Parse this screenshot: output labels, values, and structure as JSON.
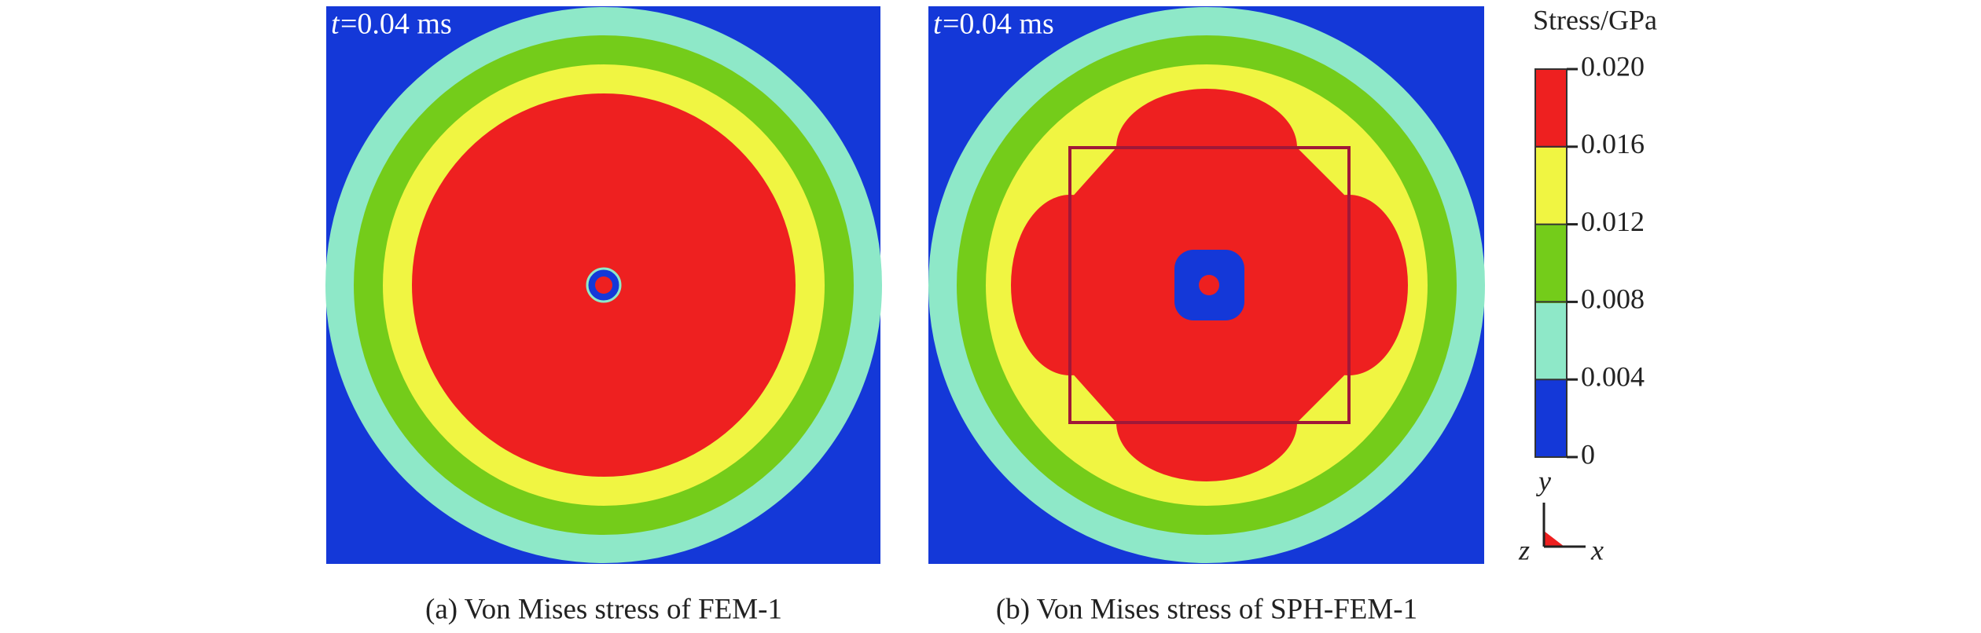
{
  "panels": [
    {
      "time_var": "t",
      "time_value": "=0.04 ms",
      "caption": "(a) Von Mises stress of FEM-1"
    },
    {
      "time_var": "t",
      "time_value": "=0.04 ms",
      "caption": "(b) Von Mises stress of SPH-FEM-1"
    }
  ],
  "colorbar": {
    "title": "Stress/GPa",
    "ticks": [
      "0.020",
      "0.016",
      "0.012",
      "0.008",
      "0.004",
      "0"
    ]
  },
  "axes": {
    "y": "y",
    "z": "z",
    "x": "x"
  }
}
